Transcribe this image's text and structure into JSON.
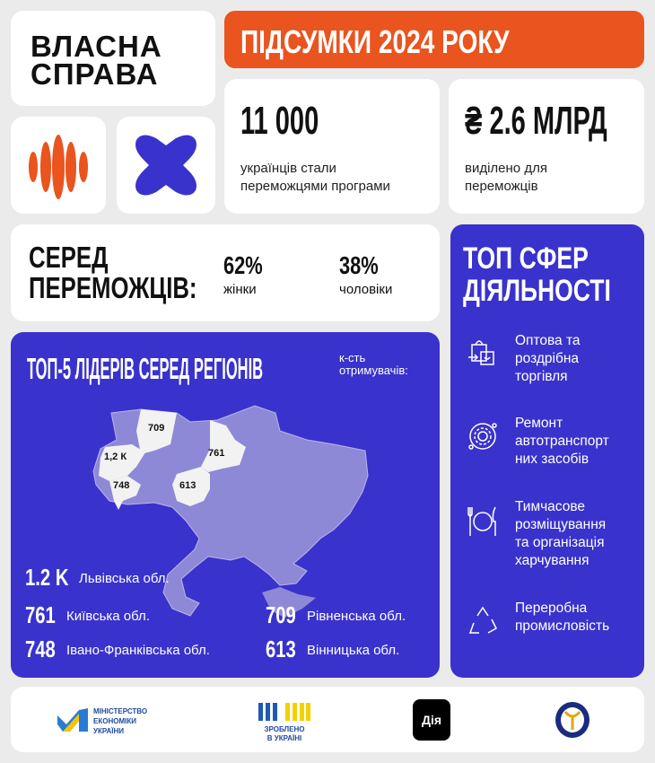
{
  "brand": {
    "line1": "ВЛАСНА",
    "line2": "СПРАВА"
  },
  "banner": {
    "title": "ПІДСУМКИ 2024 РОКУ"
  },
  "stats": [
    {
      "value": "11 000",
      "desc1": "українців стали",
      "desc2": "переможцями програми"
    },
    {
      "value": "₴ 2.6 МЛРД",
      "desc1": "виділено для",
      "desc2": "переможців"
    }
  ],
  "gender": {
    "title1": "СЕРЕД",
    "title2": "ПЕРЕМОЖЦІВ:",
    "women_pct": "62%",
    "women_label": "жінки",
    "men_pct": "38%",
    "men_label": "чоловіки"
  },
  "regions": {
    "title": "ТОП-5 ЛІДЕРІВ СЕРЕД РЕГІОНІВ",
    "subtitle1": "к-сть",
    "subtitle2": "отримувачів:",
    "map_labels": {
      "lviv": "1,2 К",
      "rivne": "709",
      "kyiv": "761",
      "ivano": "748",
      "vinnytsia": "613"
    },
    "leaders": [
      {
        "value": "1.2 K",
        "name": "Львівська обл."
      },
      {
        "value": "761",
        "name": "Київська обл."
      },
      {
        "value": "709",
        "name": "Рівненська обл."
      },
      {
        "value": "748",
        "name": "Івано-Франківська обл."
      },
      {
        "value": "613",
        "name": "Вінницька обл."
      }
    ]
  },
  "spheres": {
    "title1": "ТОП СФЕР",
    "title2": "ДІЯЛЬНОСТІ",
    "items": [
      {
        "icon": "shopping-bags-icon",
        "l1": "Оптова та",
        "l2": "роздрібна",
        "l3": "торгівля"
      },
      {
        "icon": "gear-wrench-icon",
        "l1": "Ремонт",
        "l2": "автотранспорт",
        "l3": "них засобів"
      },
      {
        "icon": "plate-cutlery-icon",
        "l1": "Тимчасове",
        "l2": "розміщування",
        "l3": "та організація",
        "l4": "харчування"
      },
      {
        "icon": "recycle-icon",
        "l1": "Переробна",
        "l2": "промисловість"
      }
    ]
  },
  "footer": {
    "ministry1": "МІНІСТЕРСТВО",
    "ministry2": "ЕКОНОМІКИ",
    "ministry3": "УКРАЇНИ",
    "made1": "ЗРОБЛЕНО",
    "made2": "В УКРАЇНІ",
    "diia": "Дія"
  },
  "colors": {
    "orange": "#e9541f",
    "blue": "#3a32cc",
    "map_region": "#8d89d6",
    "map_highlight": "#f2f2f2",
    "background": "#ebebeb"
  }
}
